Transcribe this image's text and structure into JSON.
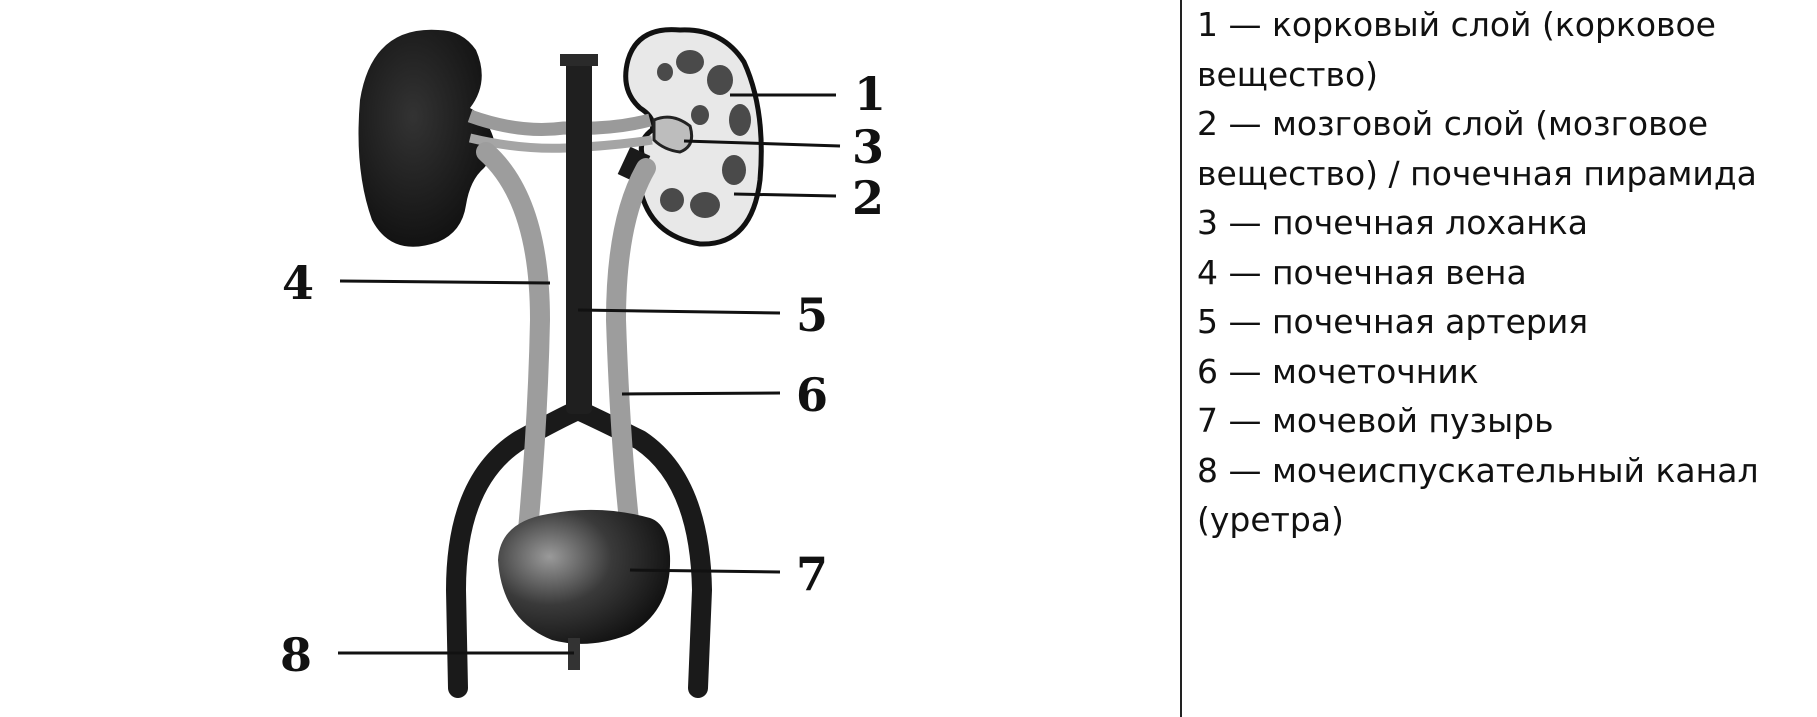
{
  "figure": {
    "markers": [
      "1",
      "2",
      "3",
      "4",
      "5",
      "6",
      "7",
      "8"
    ]
  },
  "legend": {
    "items": [
      "1 — корковый слой (корковое вещество)",
      "2 — мозговой слой (мозговое вещество) / почечная пирамида",
      "3 — почечная лоханка",
      "4 — почечная вена",
      "5 — почечная артерия",
      "6 — мочеточник",
      "7 — мочевой пузырь",
      "8 — мочеиспускательный канал (уретра)"
    ]
  }
}
